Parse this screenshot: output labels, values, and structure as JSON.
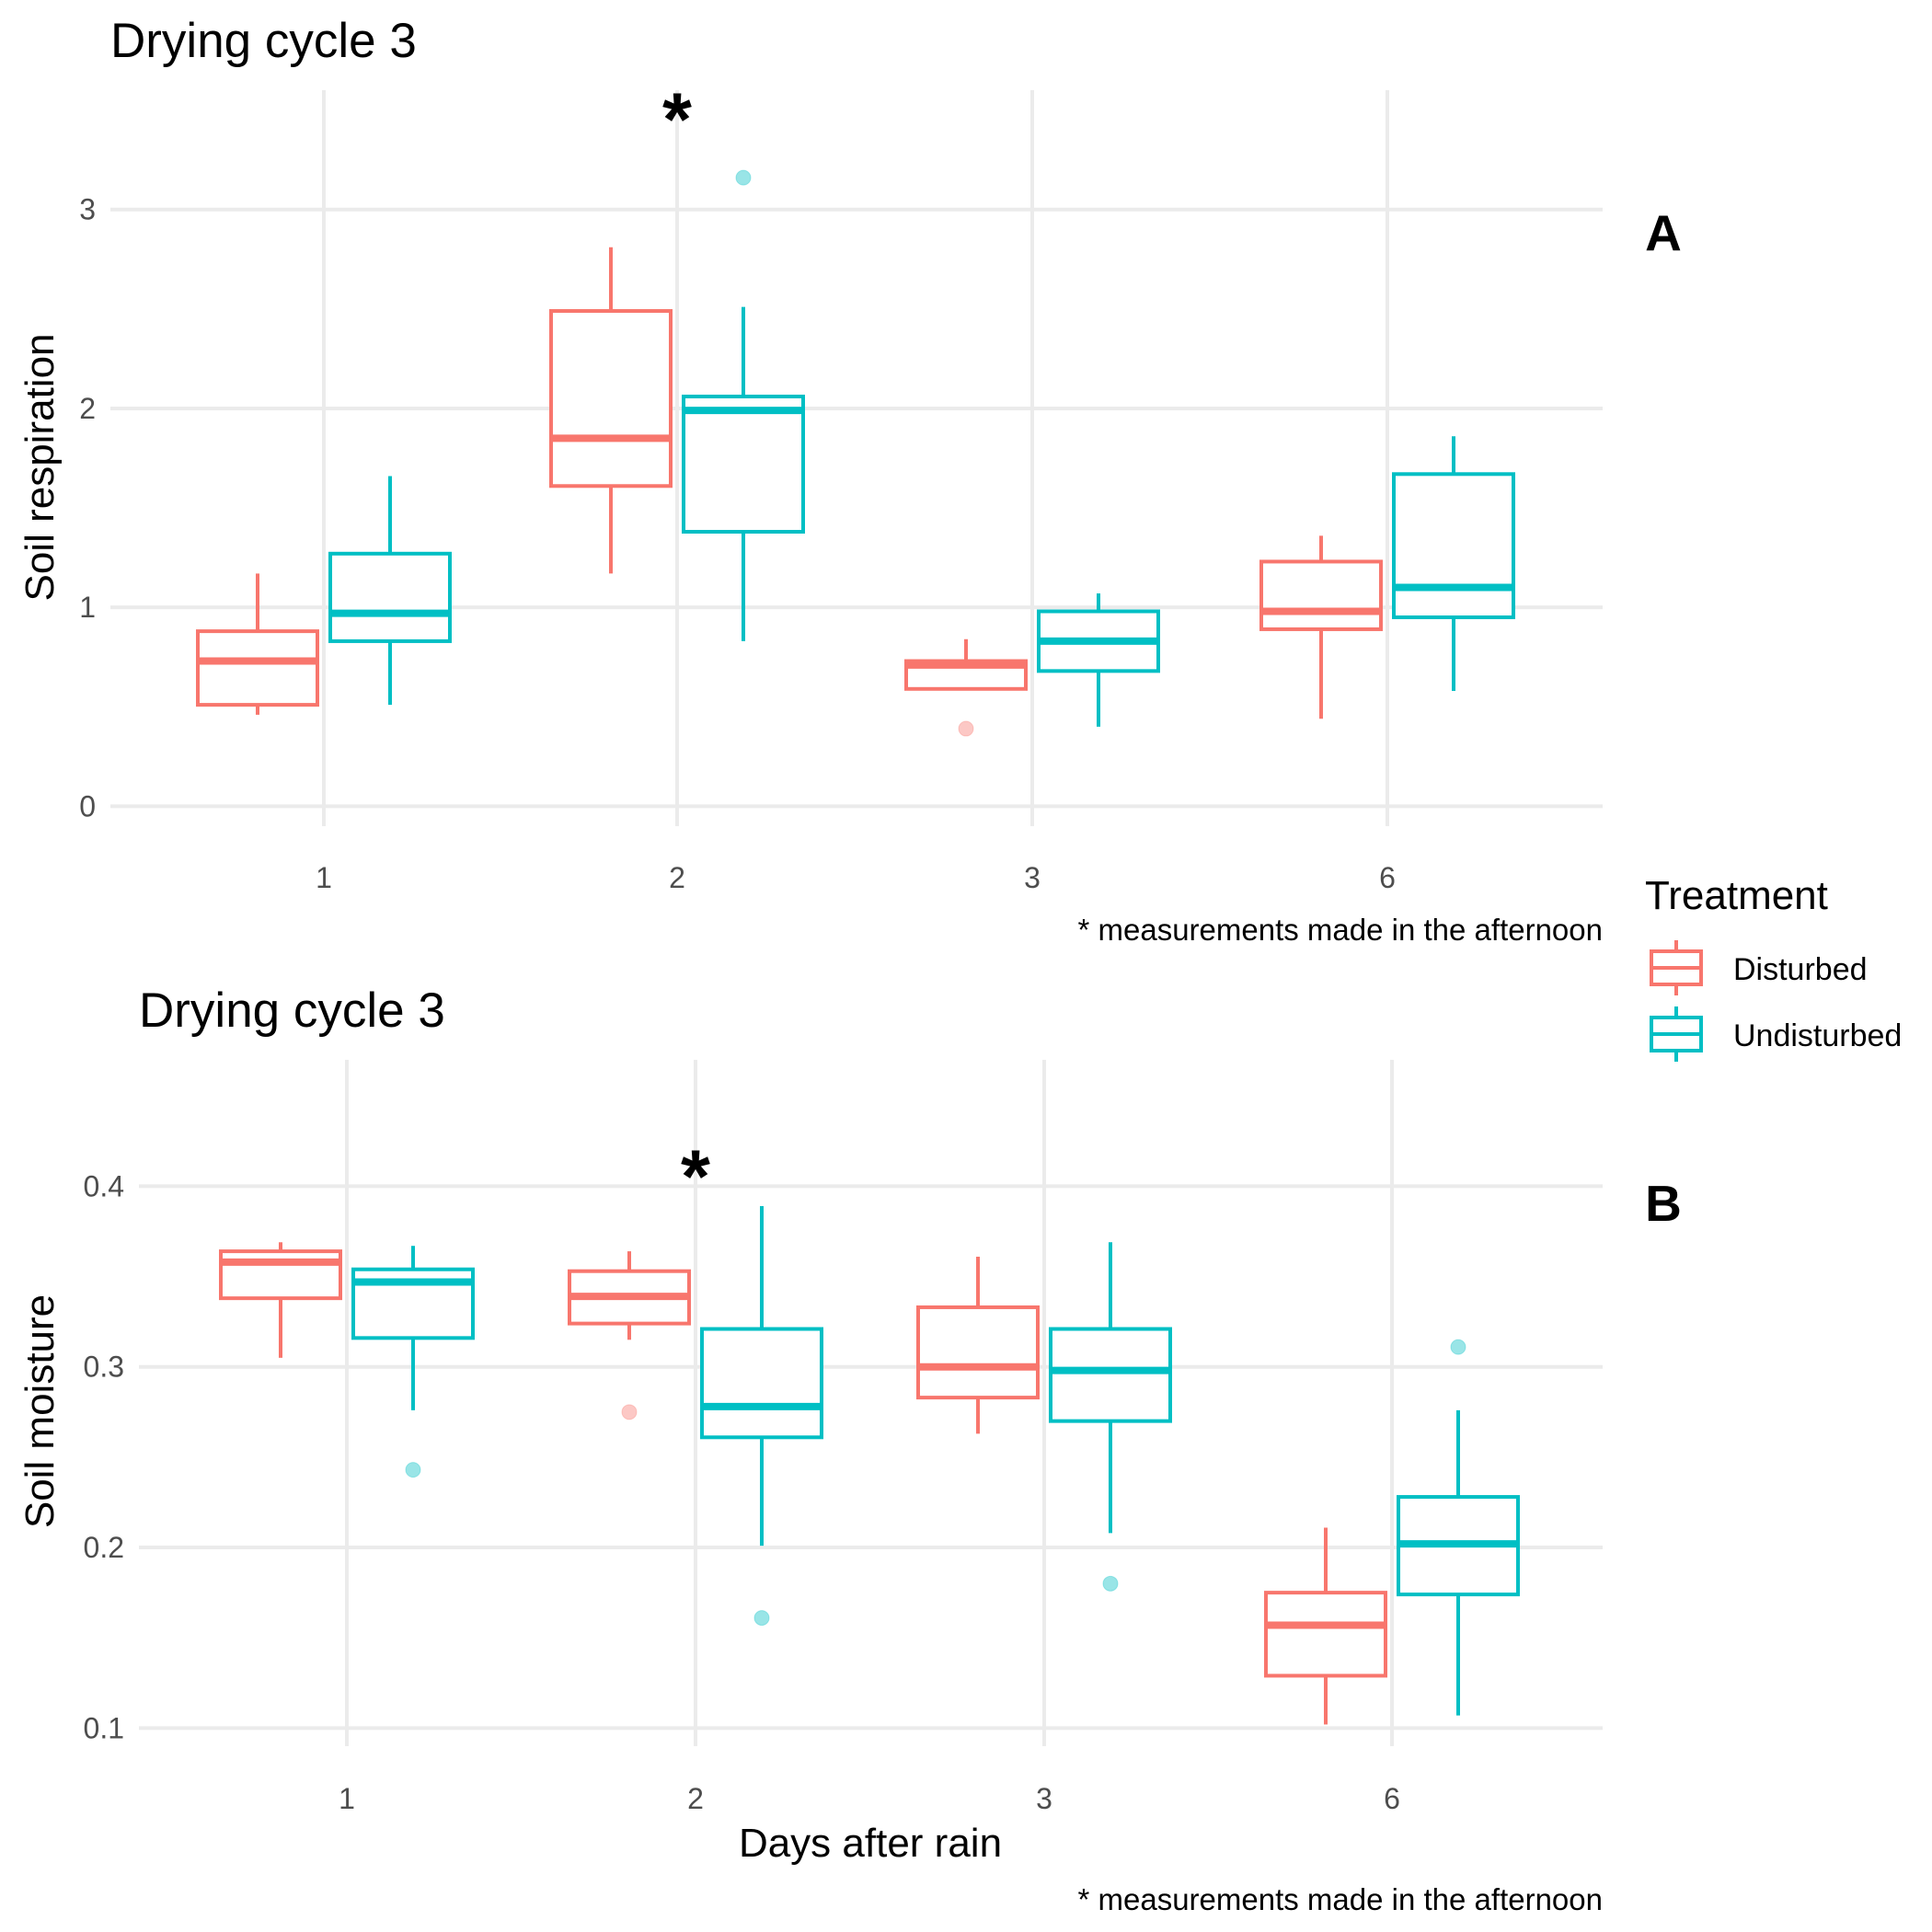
{
  "legend": {
    "title": "Treatment",
    "items": [
      {
        "label": "Disturbed",
        "color": "#F8766D"
      },
      {
        "label": "Undisturbed",
        "color": "#00BFC4"
      }
    ]
  },
  "chart_data": [
    {
      "type": "boxplot",
      "title": "Drying cycle 3",
      "tag": "A",
      "annotation": "*",
      "annotation_category": "2",
      "caption": "* measurements made in the afternoon",
      "xlabel": "",
      "ylabel": "Soil respiration",
      "categories": [
        "1",
        "2",
        "3",
        "6"
      ],
      "ylim": [
        -0.1,
        3.6
      ],
      "yticks": [
        0,
        1,
        2,
        3
      ],
      "ytick_labels": [
        "0",
        "1",
        "2",
        "3"
      ],
      "grid": true,
      "series": [
        {
          "name": "Disturbed",
          "color": "#F8766D",
          "boxes": [
            {
              "min": 0.46,
              "q1": 0.51,
              "median": 0.73,
              "q3": 0.88,
              "max": 1.17,
              "outliers": []
            },
            {
              "min": 1.17,
              "q1": 1.61,
              "median": 1.85,
              "q3": 2.49,
              "max": 2.81,
              "outliers": []
            },
            {
              "min": 0.59,
              "q1": 0.59,
              "median": 0.71,
              "q3": 0.73,
              "max": 0.84,
              "outliers": [
                0.39
              ]
            },
            {
              "min": 0.44,
              "q1": 0.89,
              "median": 0.98,
              "q3": 1.23,
              "max": 1.36,
              "outliers": []
            }
          ]
        },
        {
          "name": "Undisturbed",
          "color": "#00BFC4",
          "boxes": [
            {
              "min": 0.51,
              "q1": 0.83,
              "median": 0.97,
              "q3": 1.27,
              "max": 1.66,
              "outliers": []
            },
            {
              "min": 0.83,
              "q1": 1.38,
              "median": 1.99,
              "q3": 2.06,
              "max": 2.51,
              "outliers": [
                3.16
              ]
            },
            {
              "min": 0.4,
              "q1": 0.68,
              "median": 0.83,
              "q3": 0.98,
              "max": 1.07,
              "outliers": []
            },
            {
              "min": 0.58,
              "q1": 0.95,
              "median": 1.1,
              "q3": 1.67,
              "max": 1.86,
              "outliers": []
            }
          ]
        }
      ]
    },
    {
      "type": "boxplot",
      "title": "Drying cycle 3",
      "tag": "B",
      "annotation": "*",
      "annotation_category": "2",
      "caption": "* measurements made in the afternoon",
      "xlabel": "Days after rain",
      "ylabel": "Soil moisture",
      "categories": [
        "1",
        "2",
        "3",
        "6"
      ],
      "ylim": [
        0.09,
        0.47
      ],
      "yticks": [
        0.1,
        0.2,
        0.3,
        0.4
      ],
      "ytick_labels": [
        "0.1",
        "0.2",
        "0.3",
        "0.4"
      ],
      "grid": true,
      "series": [
        {
          "name": "Disturbed",
          "color": "#F8766D",
          "boxes": [
            {
              "min": 0.305,
              "q1": 0.338,
              "median": 0.358,
              "q3": 0.364,
              "max": 0.369,
              "outliers": []
            },
            {
              "min": 0.315,
              "q1": 0.324,
              "median": 0.339,
              "q3": 0.353,
              "max": 0.364,
              "outliers": [
                0.275
              ]
            },
            {
              "min": 0.263,
              "q1": 0.283,
              "median": 0.3,
              "q3": 0.333,
              "max": 0.361,
              "outliers": []
            },
            {
              "min": 0.102,
              "q1": 0.129,
              "median": 0.157,
              "q3": 0.175,
              "max": 0.211,
              "outliers": []
            }
          ]
        },
        {
          "name": "Undisturbed",
          "color": "#00BFC4",
          "boxes": [
            {
              "min": 0.276,
              "q1": 0.316,
              "median": 0.347,
              "q3": 0.354,
              "max": 0.367,
              "outliers": [
                0.243
              ]
            },
            {
              "min": 0.201,
              "q1": 0.261,
              "median": 0.278,
              "q3": 0.321,
              "max": 0.389,
              "outliers": [
                0.161
              ]
            },
            {
              "min": 0.208,
              "q1": 0.27,
              "median": 0.298,
              "q3": 0.321,
              "max": 0.369,
              "outliers": [
                0.18
              ]
            },
            {
              "min": 0.107,
              "q1": 0.174,
              "median": 0.202,
              "q3": 0.228,
              "max": 0.276,
              "outliers": [
                0.311
              ]
            }
          ]
        }
      ]
    }
  ]
}
